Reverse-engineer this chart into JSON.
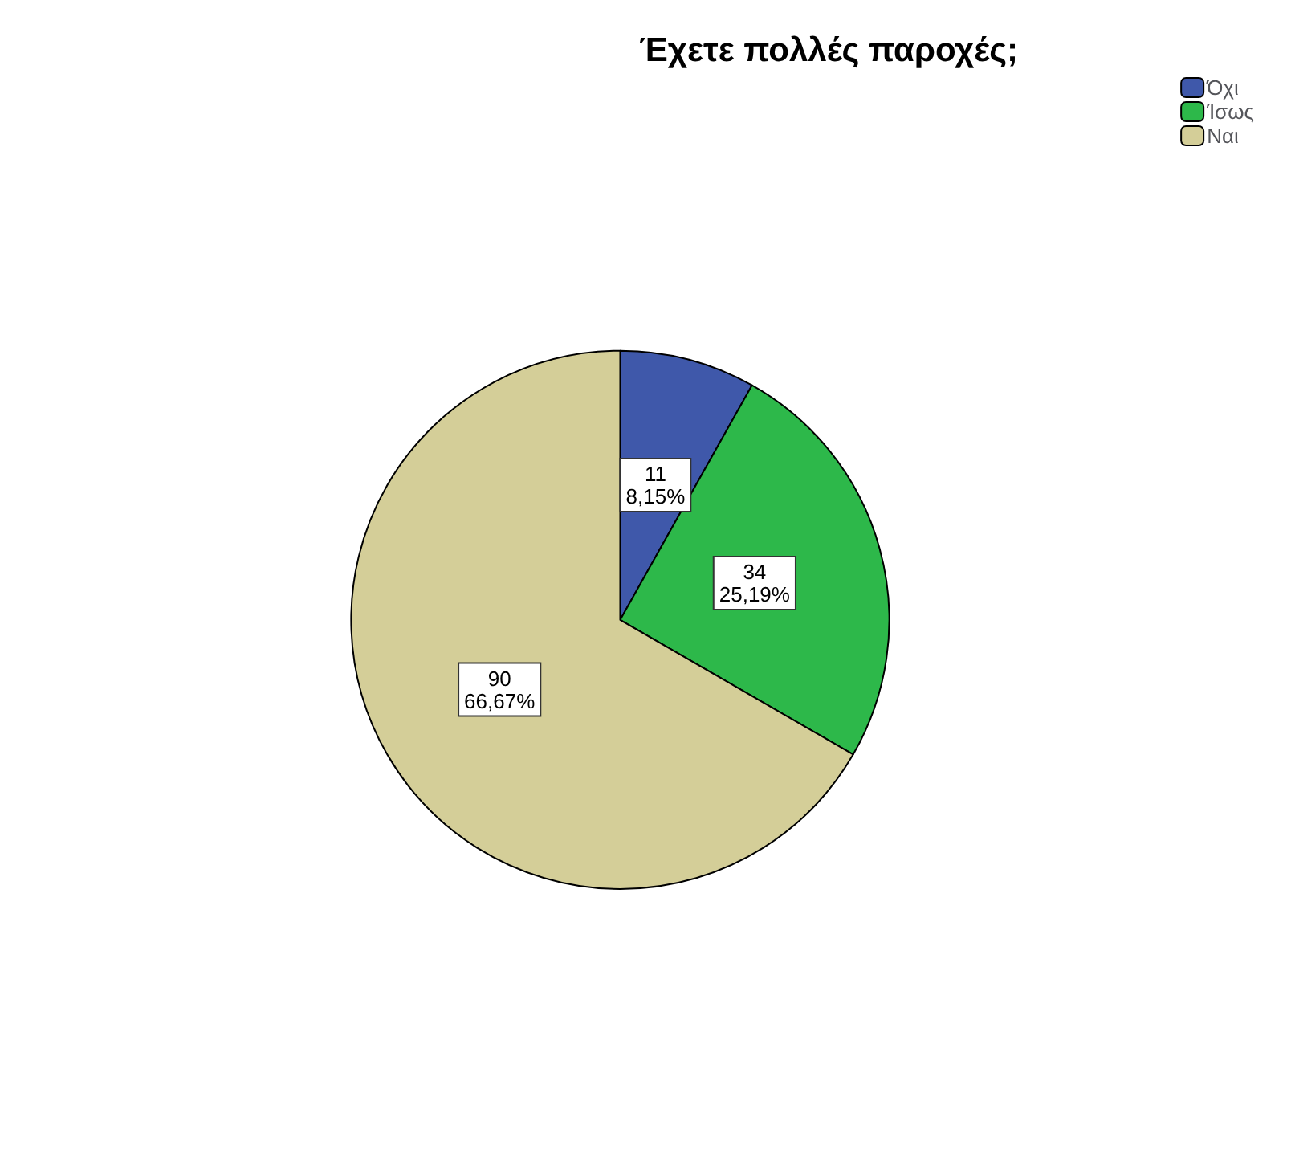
{
  "chart_data": {
    "type": "pie",
    "title": "Έχετε πολλές παροχές;",
    "categories": [
      "Όχι",
      "Ίσως",
      "Ναι"
    ],
    "values": [
      11,
      34,
      90
    ],
    "colors": [
      "#3f58aa",
      "#2db84a",
      "#d4ce98"
    ],
    "value_labels": [
      "11\n8,15%",
      "34\n25,19%",
      "90\n66,67%"
    ],
    "legend": "top right"
  }
}
